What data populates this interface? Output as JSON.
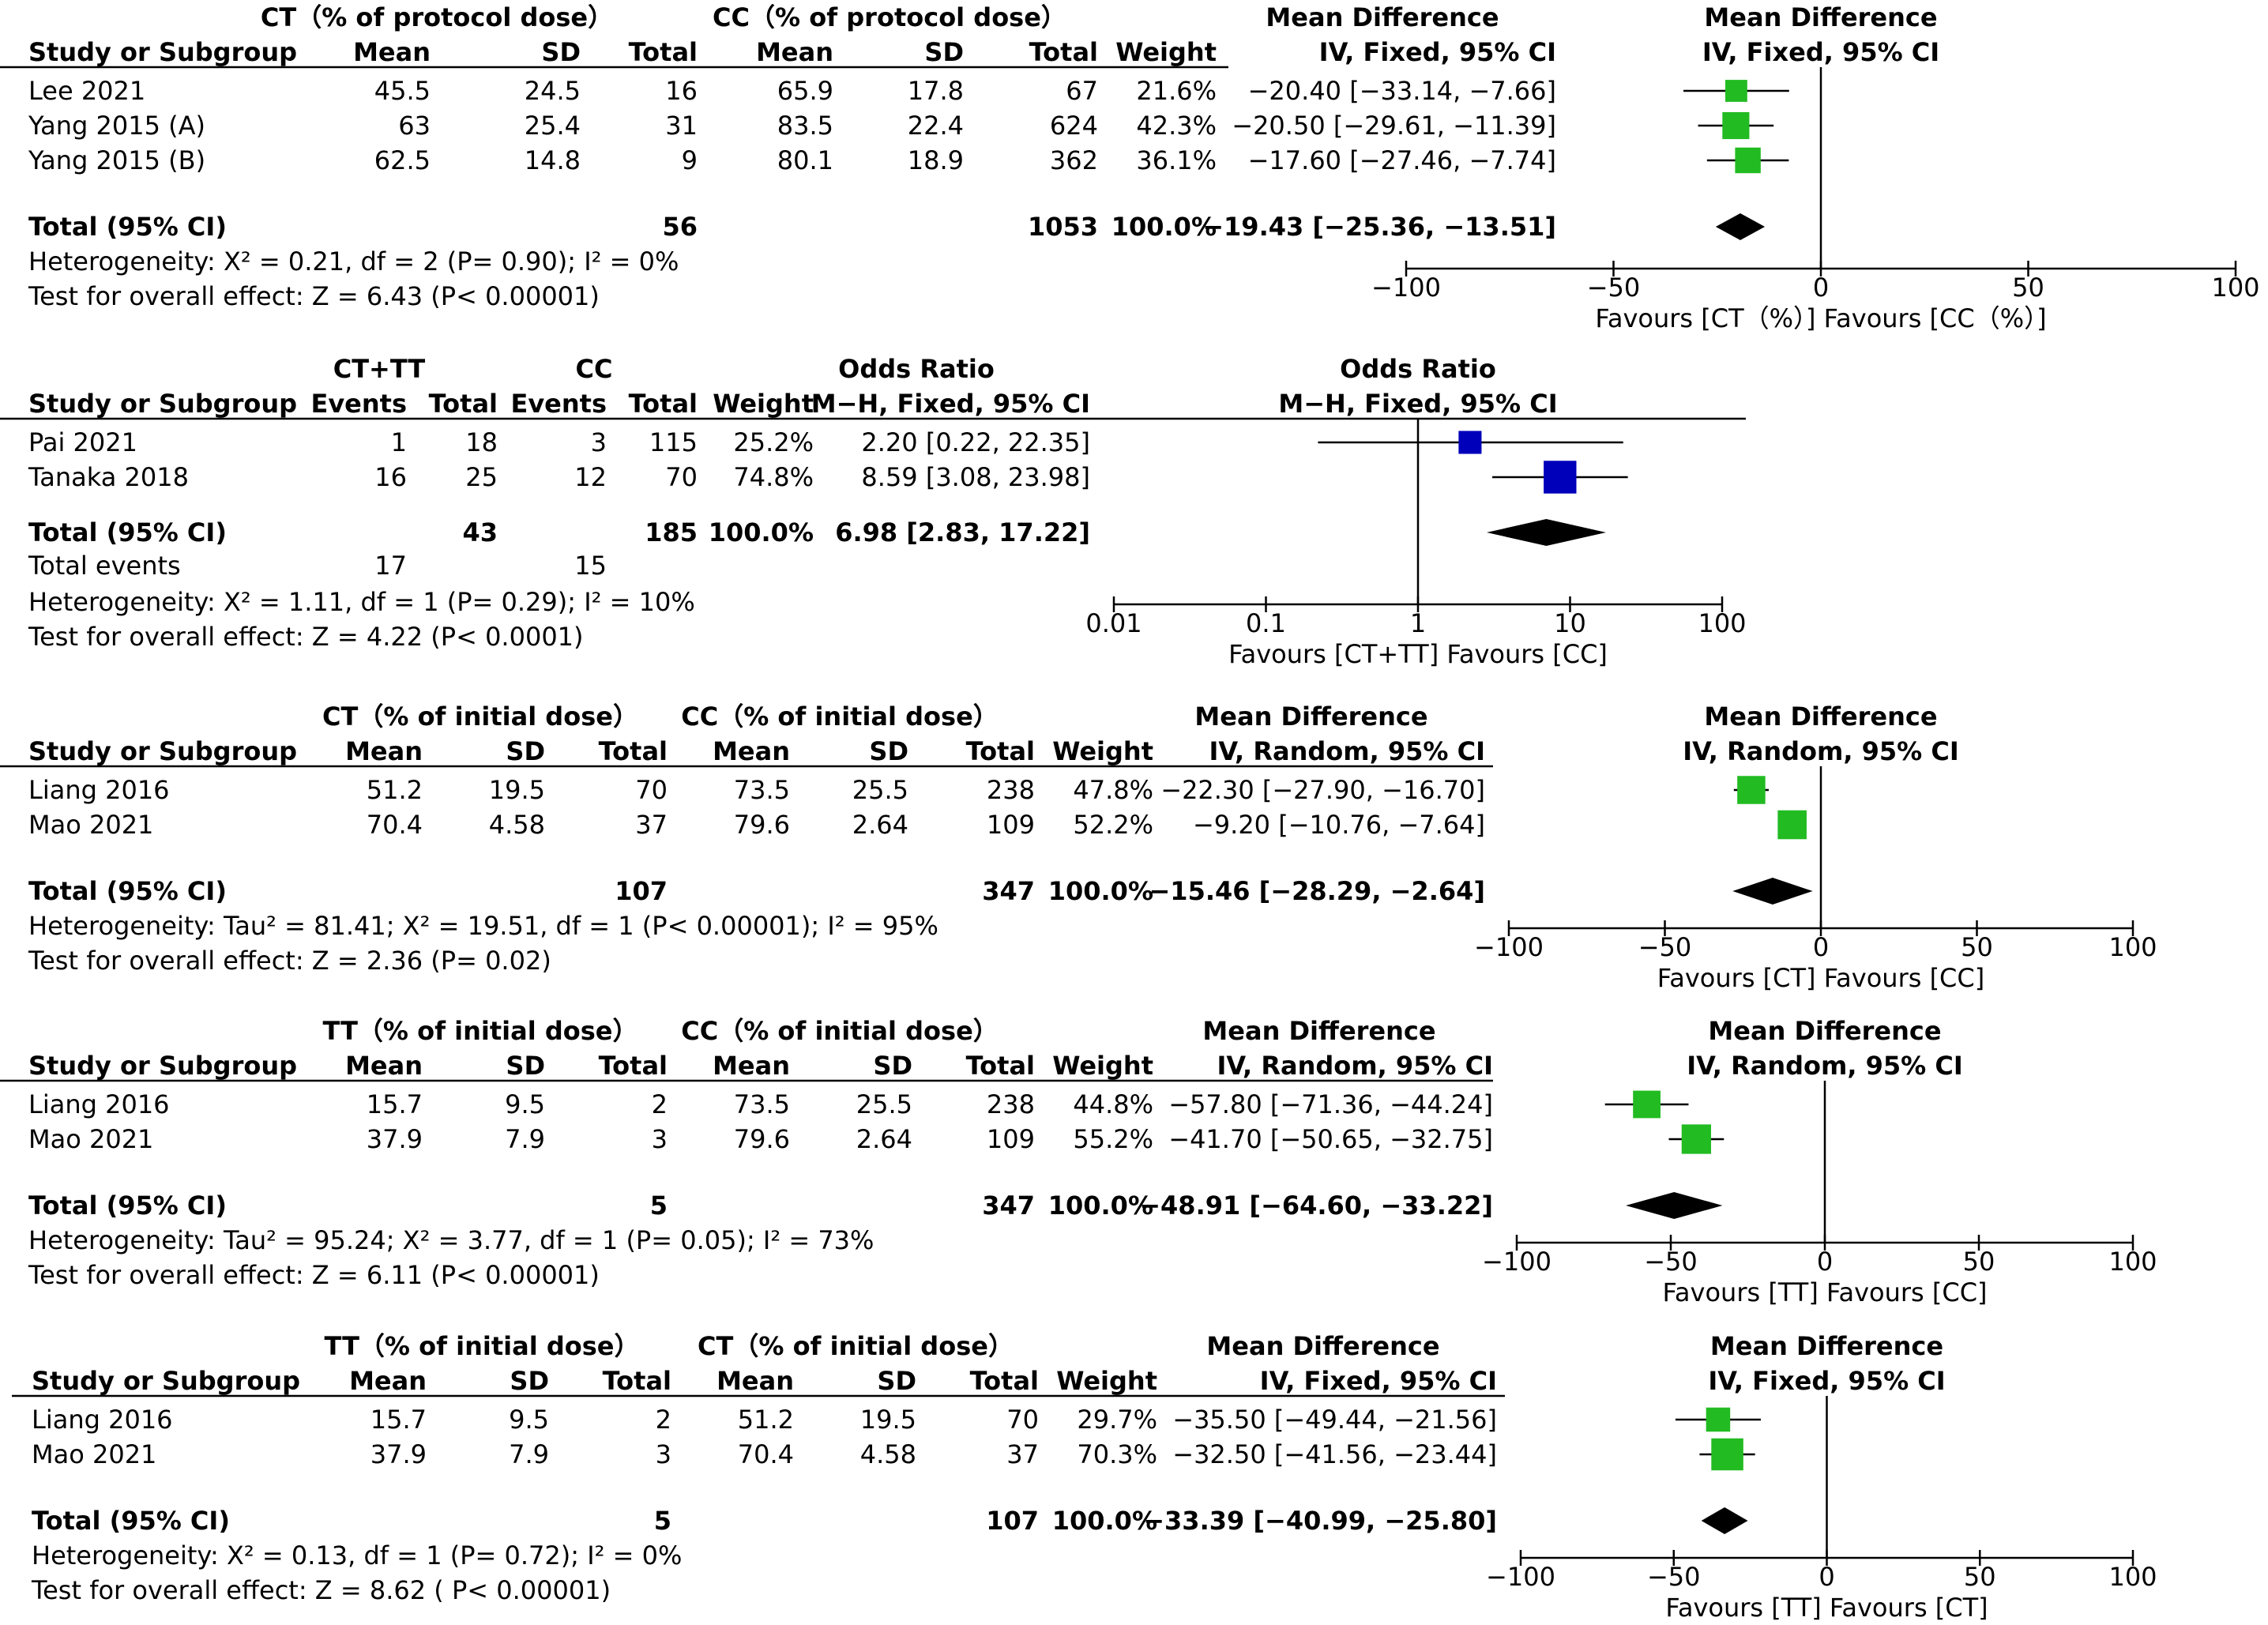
{
  "chart_data": [
    {
      "type": "forest",
      "measure": "md",
      "group1": "CT（% of protocol dose）",
      "group2": "CC（% of protocol dose）",
      "subgroup_label": "Study or Subgroup",
      "col_mean": "Mean",
      "col_sd": "SD",
      "col_total": "Total",
      "col_weight": "Weight",
      "effect_label": "Mean Difference",
      "method": "IV, Fixed, 95% CI",
      "square_color": "#22bb22",
      "studies": [
        {
          "name": "Lee 2021",
          "mean1": "45.5",
          "sd1": "24.5",
          "n1": "16",
          "mean2": "65.9",
          "sd2": "17.8",
          "n2": "67",
          "weight": "21.6%",
          "ci": "−20.40 [−33.14, −7.66]",
          "est": -20.4,
          "lo": -33.14,
          "hi": -7.66,
          "w": 21.6
        },
        {
          "name": "Yang 2015 (A)",
          "mean1": "63",
          "sd1": "25.4",
          "n1": "31",
          "mean2": "83.5",
          "sd2": "22.4",
          "n2": "624",
          "weight": "42.3%",
          "ci": "−20.50 [−29.61, −11.39]",
          "est": -20.5,
          "lo": -29.61,
          "hi": -11.39,
          "w": 42.3
        },
        {
          "name": "Yang 2015 (B)",
          "mean1": "62.5",
          "sd1": "14.8",
          "n1": "9",
          "mean2": "80.1",
          "sd2": "18.9",
          "n2": "362",
          "weight": "36.1%",
          "ci": "−17.60 [−27.46, −7.74]",
          "est": -17.6,
          "lo": -27.46,
          "hi": -7.74,
          "w": 36.1
        }
      ],
      "total": {
        "label": "Total (95% CI)",
        "n1": "56",
        "n2": "1053",
        "weight": "100.0%",
        "ci": "−19.43 [−25.36, −13.51]",
        "est": -19.43,
        "lo": -25.36,
        "hi": -13.51
      },
      "footer": [
        "Heterogeneity:   Χ² = 0.21, df = 2 (P= 0.90); I² = 0%",
        "Test for overall effect: Z = 6.43 (P< 0.00001)"
      ],
      "axis": {
        "scale": "linear",
        "min": -100,
        "max": 100,
        "ticks": [
          -100,
          -50,
          0,
          50,
          100
        ],
        "tick_labels": [
          "−100",
          "−50",
          "0",
          "50",
          "100"
        ]
      },
      "favours": "Favours [CT（%）]  Favours [CC（%）]"
    },
    {
      "type": "forest",
      "measure": "or",
      "group1": "CT+TT",
      "group2": "CC",
      "subgroup_label": "Study or Subgroup",
      "col_events": "Events",
      "col_total": "Total",
      "col_weight": "Weight",
      "effect_label": "Odds Ratio",
      "method": "M−H, Fixed, 95% CI",
      "square_color": "#0000bb",
      "studies": [
        {
          "name": "Pai 2021",
          "e1": "1",
          "n1": "18",
          "e2": "3",
          "n2": "115",
          "weight": "25.2%",
          "ci": "2.20 [0.22, 22.35]",
          "est": 2.2,
          "lo": 0.22,
          "hi": 22.35,
          "w": 25.2
        },
        {
          "name": "Tanaka 2018",
          "e1": "16",
          "n1": "25",
          "e2": "12",
          "n2": "70",
          "weight": "74.8%",
          "ci": "8.59 [3.08, 23.98]",
          "est": 8.59,
          "lo": 3.08,
          "hi": 23.98,
          "w": 74.8
        }
      ],
      "total": {
        "label": "Total (95% CI)",
        "n1": "43",
        "n2": "185",
        "weight": "100.0%",
        "ci": "6.98 [2.83, 17.22]",
        "est": 6.98,
        "lo": 2.83,
        "hi": 17.22
      },
      "total_events": {
        "label": "Total events",
        "e1": "17",
        "e2": "15"
      },
      "footer": [
        "Heterogeneity:   Χ² = 1.11, df = 1 (P= 0.29); I² = 10%",
        "Test for overall effect: Z = 4.22 (P< 0.0001)"
      ],
      "axis": {
        "scale": "log",
        "min": 0.01,
        "max": 100,
        "ticks": [
          0.01,
          0.1,
          1,
          10,
          100
        ],
        "tick_labels": [
          "0.01",
          "0.1",
          "1",
          "10",
          "100"
        ]
      },
      "favours": "Favours [CT+TT]  Favours [CC]"
    },
    {
      "type": "forest",
      "measure": "md",
      "group1": "CT（% of initial dose）",
      "group2": "CC（% of initial dose）",
      "subgroup_label": "Study or Subgroup",
      "col_mean": "Mean",
      "col_sd": "SD",
      "col_total": "Total",
      "col_weight": "Weight",
      "effect_label": "Mean Difference",
      "method": "IV, Random, 95% CI",
      "square_color": "#22bb22",
      "studies": [
        {
          "name": "Liang 2016",
          "mean1": "51.2",
          "sd1": "19.5",
          "n1": "70",
          "mean2": "73.5",
          "sd2": "25.5",
          "n2": "238",
          "weight": "47.8%",
          "ci": "−22.30 [−27.90, −16.70]",
          "est": -22.3,
          "lo": -27.9,
          "hi": -16.7,
          "w": 47.8
        },
        {
          "name": "Mao 2021",
          "mean1": "70.4",
          "sd1": "4.58",
          "n1": "37",
          "mean2": "79.6",
          "sd2": "2.64",
          "n2": "109",
          "weight": "52.2%",
          "ci": "−9.20 [−10.76, −7.64]",
          "est": -9.2,
          "lo": -10.76,
          "hi": -7.64,
          "w": 52.2
        }
      ],
      "total": {
        "label": "Total (95% CI)",
        "n1": "107",
        "n2": "347",
        "weight": "100.0%",
        "ci": "−15.46 [−28.29, −2.64]",
        "est": -15.46,
        "lo": -28.29,
        "hi": -2.64
      },
      "footer": [
        "Heterogeneity: Tau² = 81.41;    Χ² = 19.51, df = 1 (P< 0.00001); I² = 95%",
        "Test for overall effect: Z = 2.36 (P= 0.02)"
      ],
      "axis": {
        "scale": "linear",
        "min": -100,
        "max": 100,
        "ticks": [
          -100,
          -50,
          0,
          50,
          100
        ],
        "tick_labels": [
          "−100",
          "−50",
          "0",
          "50",
          "100"
        ]
      },
      "favours": "Favours [CT]  Favours [CC]"
    },
    {
      "type": "forest",
      "measure": "md",
      "group1": "TT（% of initial dose）",
      "group2": "CC（% of initial dose）",
      "subgroup_label": "Study or Subgroup",
      "col_mean": "Mean",
      "col_sd": "SD",
      "col_total": "Total",
      "col_weight": "Weight",
      "effect_label": "Mean Difference",
      "method": "IV, Random, 95% CI",
      "square_color": "#22bb22",
      "studies": [
        {
          "name": "Liang 2016",
          "mean1": "15.7",
          "sd1": "9.5",
          "n1": "2",
          "mean2": "73.5",
          "sd2": "25.5",
          "n2": "238",
          "weight": "44.8%",
          "ci": "−57.80 [−71.36, −44.24]",
          "est": -57.8,
          "lo": -71.36,
          "hi": -44.24,
          "w": 44.8
        },
        {
          "name": "Mao 2021",
          "mean1": "37.9",
          "sd1": "7.9",
          "n1": "3",
          "mean2": "79.6",
          "sd2": "2.64",
          "n2": "109",
          "weight": "55.2%",
          "ci": "−41.70 [−50.65, −32.75]",
          "est": -41.7,
          "lo": -50.65,
          "hi": -32.75,
          "w": 55.2
        }
      ],
      "total": {
        "label": "Total (95% CI)",
        "n1": "5",
        "n2": "347",
        "weight": "100.0%",
        "ci": "−48.91 [−64.60, −33.22]",
        "est": -48.91,
        "lo": -64.6,
        "hi": -33.22
      },
      "footer": [
        "Heterogeneity: Tau² = 95.24;    Χ² = 3.77, df = 1 (P= 0.05); I² = 73%",
        "Test for overall effect: Z = 6.11 (P< 0.00001)"
      ],
      "axis": {
        "scale": "linear",
        "min": -100,
        "max": 100,
        "ticks": [
          -100,
          -50,
          0,
          50,
          100
        ],
        "tick_labels": [
          "−100",
          "−50",
          "0",
          "50",
          "100"
        ]
      },
      "favours": "Favours [TT]  Favours [CC]"
    },
    {
      "type": "forest",
      "measure": "md",
      "group1": "TT（% of initial dose）",
      "group2": "CT（% of initial dose）",
      "subgroup_label": "Study or Subgroup",
      "col_mean": "Mean",
      "col_sd": "SD",
      "col_total": "Total",
      "col_weight": "Weight",
      "effect_label": "Mean Difference",
      "method": "IV, Fixed, 95% CI",
      "square_color": "#22bb22",
      "studies": [
        {
          "name": "Liang 2016",
          "mean1": "15.7",
          "sd1": "9.5",
          "n1": "2",
          "mean2": "51.2",
          "sd2": "19.5",
          "n2": "70",
          "weight": "29.7%",
          "ci": "−35.50 [−49.44, −21.56]",
          "est": -35.5,
          "lo": -49.44,
          "hi": -21.56,
          "w": 29.7
        },
        {
          "name": "Mao 2021",
          "mean1": "37.9",
          "sd1": "7.9",
          "n1": "3",
          "mean2": "70.4",
          "sd2": "4.58",
          "n2": "37",
          "weight": "70.3%",
          "ci": "−32.50 [−41.56, −23.44]",
          "est": -32.5,
          "lo": -41.56,
          "hi": -23.44,
          "w": 70.3
        }
      ],
      "total": {
        "label": "Total (95% CI)",
        "n1": "5",
        "n2": "107",
        "weight": "100.0%",
        "ci": "−33.39 [−40.99, −25.80]",
        "est": -33.39,
        "lo": -40.99,
        "hi": -25.8
      },
      "footer": [
        "Heterogeneity:   Χ² = 0.13, df = 1 (P= 0.72); I² = 0%",
        "Test for overall effect: Z = 8.62 ( P< 0.00001)"
      ],
      "axis": {
        "scale": "linear",
        "min": -100,
        "max": 100,
        "ticks": [
          -100,
          -50,
          0,
          50,
          100
        ],
        "tick_labels": [
          "−100",
          "−50",
          "0",
          "50",
          "100"
        ]
      },
      "favours": "Favours [TT]  Favours [CT]"
    }
  ]
}
